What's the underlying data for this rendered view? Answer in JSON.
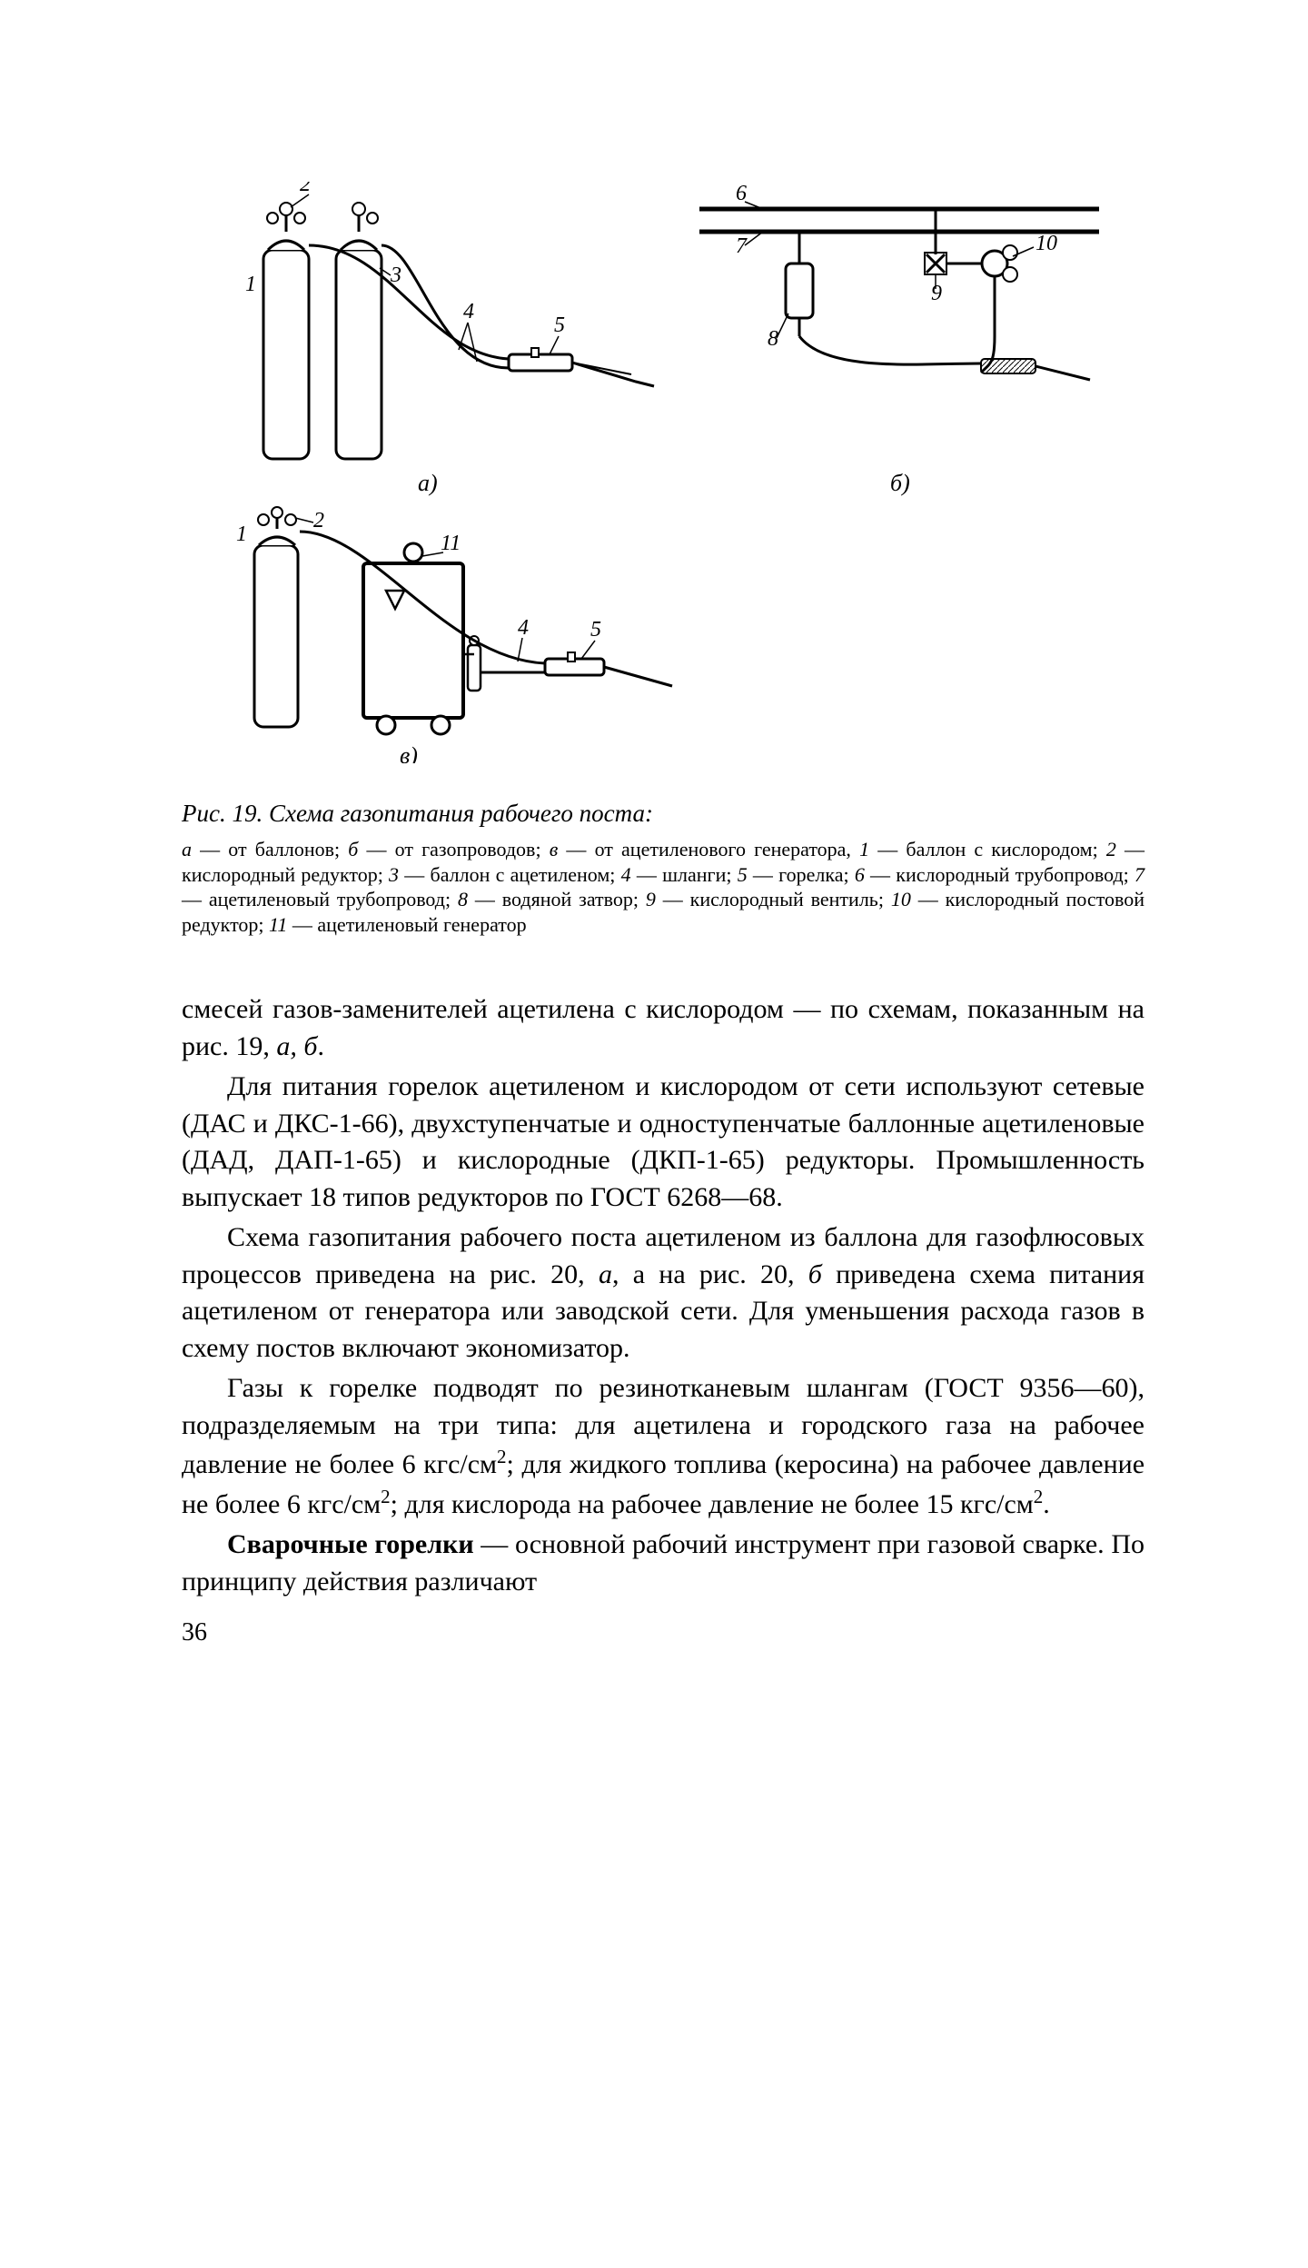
{
  "figure": {
    "labels": {
      "n1": "1",
      "n2": "2",
      "n3": "3",
      "n4": "4",
      "n5": "5",
      "n6": "6",
      "n7": "7",
      "n8": "8",
      "n9": "9",
      "n10": "10",
      "n11": "11"
    },
    "panels": {
      "a": "а)",
      "b": "б)",
      "v": "в)"
    },
    "stroke": "#000000",
    "fill": "#ffffff",
    "stroke_width_main": 3,
    "stroke_width_thin": 2,
    "label_fontsize": 24,
    "label_font": "italic 24px 'Times New Roman', serif",
    "panel_fontsize": 26
  },
  "caption": {
    "title": "Рис. 19. Схема газопитания рабочего поста:",
    "legend_html": "<i>а</i> — от баллонов; <i>б</i> — от газопроводов; <i>в</i> — от ацетиленового генератора, <i>1</i> — баллон с кислородом; <i>2</i> — кислородный редуктор; <i>3</i> — баллон с ацетиленом; <i>4</i> — шланги; <i>5</i> — горелка; <i>6</i> — кислородный трубопровод; <i>7</i> — ацетиленовый трубопровод; <i>8</i> — водяной затвор; <i>9</i> — кислородный вентиль; <i>10</i> — кислородный постовой редуктор; <i>11</i> — ацетиленовый генератор"
  },
  "paragraphs": {
    "p1": "смесей газов-заменителей ацетилена с кислородом — по схемам, показанным на рис. 19, <i>а, б</i>.",
    "p2": "Для питания горелок ацетиленом и кислородом от сети используют сетевые (ДАС и ДКС-1-66), двухступенчатые и одноступенчатые баллонные ацетиленовые (ДАД, ДАП-1-65) и кислородные (ДКП-1-65) редукторы. Промышленность выпускает 18 типов редукторов по ГОСТ 6268—68.",
    "p3": "Схема газопитания рабочего поста ацетиленом из баллона для газофлюсовых процессов приведена на рис. 20, <i>а</i>, а на рис. 20, <i>б</i> приведена схема питания ацетиленом от генератора или заводской сети. Для уменьшения расхода газов в схему постов включают экономизатор.",
    "p4": "Газы к горелке подводят по резинотканевым шлангам (ГОСТ 9356—60), подразделяемым на три типа: для ацетилена и городского газа на рабочее давление не более 6 кгс/см<sup>2</sup>; для жидкого топлива (керосина) на рабочее давление не более 6 кгс/см<sup>2</sup>; для кислорода на рабочее давление не более 15 кгс/см<sup>2</sup>.",
    "p5": "<b>Сварочные горелки</b> — основной рабочий инструмент при газовой сварке. По принципу действия различают"
  },
  "page_number": "36"
}
